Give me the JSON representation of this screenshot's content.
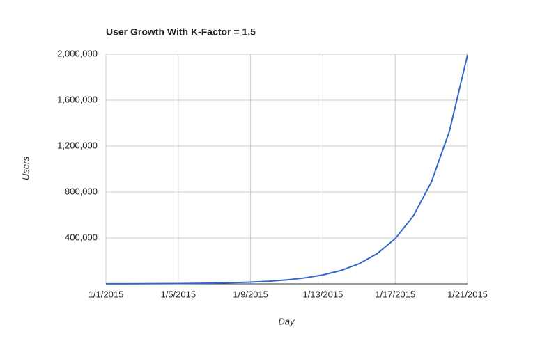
{
  "chart_data": {
    "type": "line",
    "title": "User Growth With K-Factor = 1.5",
    "x_label": "Day",
    "y_label": "Users",
    "x": [
      "1/1/2015",
      "1/2/2015",
      "1/3/2015",
      "1/4/2015",
      "1/5/2015",
      "1/6/2015",
      "1/7/2015",
      "1/8/2015",
      "1/9/2015",
      "1/10/2015",
      "1/11/2015",
      "1/12/2015",
      "1/13/2015",
      "1/14/2015",
      "1/15/2015",
      "1/16/2015",
      "1/17/2015",
      "1/18/2015",
      "1/19/2015",
      "1/20/2015",
      "1/21/2015"
    ],
    "series": [
      {
        "name": "Users",
        "color": "#3366cc",
        "values": [
          600,
          900,
          1350,
          2025,
          3038,
          4556,
          6834,
          10252,
          15377,
          23066,
          34599,
          51898,
          77848,
          116772,
          175158,
          262737,
          394105,
          591158,
          886736,
          1330105,
          1995157
        ]
      }
    ],
    "xticks": [
      "1/1/2015",
      "1/5/2015",
      "1/9/2015",
      "1/13/2015",
      "1/17/2015",
      "1/21/2015"
    ],
    "ylim": [
      0,
      2000000
    ],
    "yticks": [
      {
        "value": 400000,
        "label": "400,000"
      },
      {
        "value": 800000,
        "label": "800,000"
      },
      {
        "value": 1200000,
        "label": "1,200,000"
      },
      {
        "value": 1600000,
        "label": "1,600,000"
      },
      {
        "value": 2000000,
        "label": "2,000,000"
      }
    ],
    "grid": true
  }
}
